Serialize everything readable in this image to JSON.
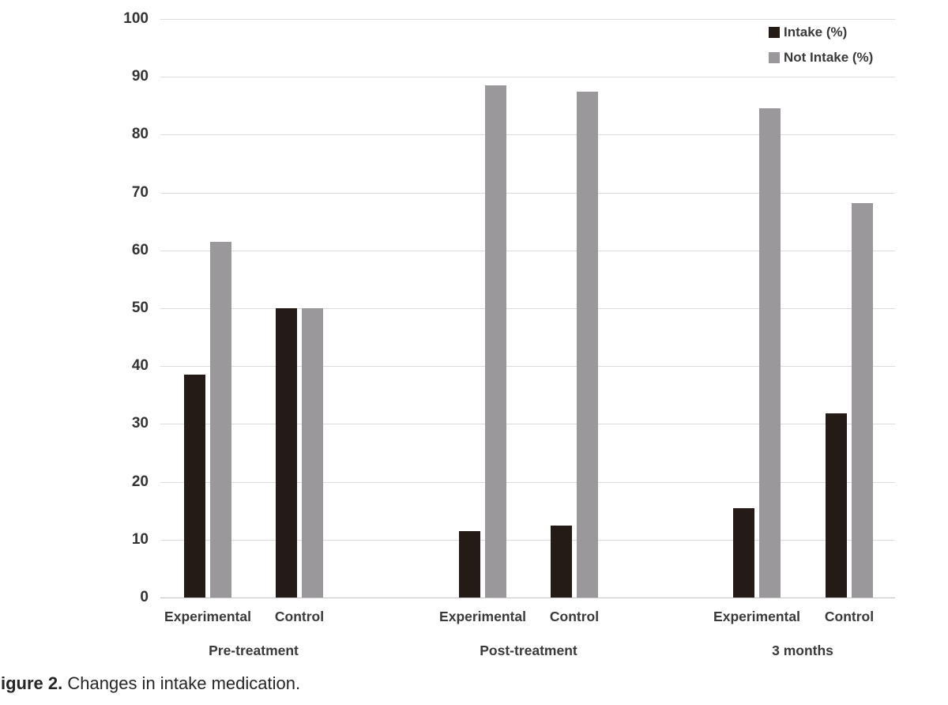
{
  "chart_data": {
    "type": "bar",
    "title": "",
    "xlabel": "",
    "ylabel": "",
    "groups": [
      "Pre-treatment",
      "Post-treatment",
      "3 months"
    ],
    "subgroup_labels": [
      "Experimental",
      "Control",
      "Experimental",
      "Control",
      "Experimental",
      "Control"
    ],
    "series": [
      {
        "name": "Intake (%)",
        "color": "#251b16",
        "values": [
          38.5,
          50,
          11.5,
          12.5,
          15.4,
          31.8
        ]
      },
      {
        "name": "Not Intake (%)",
        "color": "#9b989b",
        "values": [
          61.5,
          50,
          88.5,
          87.5,
          84.6,
          68.2
        ]
      }
    ],
    "ylim": [
      0,
      100
    ],
    "ytick_step": 10,
    "grid": true,
    "legend_position": "top-right"
  },
  "caption": {
    "prefix": "igure 2.",
    "text": "Changes in intake medication."
  },
  "colors": {
    "gridline": "#dcdcdc",
    "axis_line": "#c4c4c4",
    "tick_text": "#333333",
    "label_text": "#3a3a3a",
    "caption_text": "#262626"
  }
}
